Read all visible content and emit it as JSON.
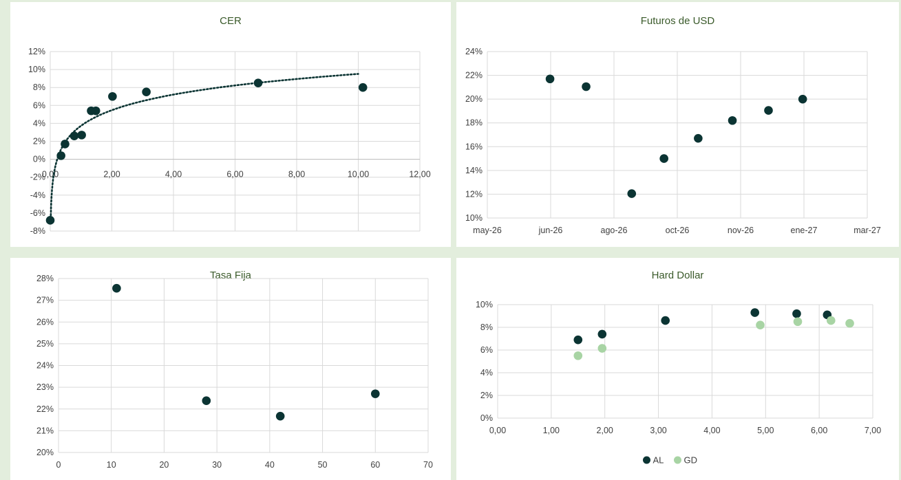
{
  "colors": {
    "dark": "#0b3433",
    "light": "#a8d4a4",
    "grid": "#d9d9d9",
    "title": "#3a5a2a"
  },
  "chart_data": [
    {
      "id": "cer",
      "type": "scatter",
      "title": "CER",
      "xlim": [
        0,
        12
      ],
      "ylim": [
        -8,
        12
      ],
      "xticks": [
        "0,00",
        "2,00",
        "4,00",
        "6,00",
        "8,00",
        "10,00",
        "12,00"
      ],
      "yticks": [
        "-8%",
        "-6%",
        "-4%",
        "-2%",
        "0%",
        "2%",
        "4%",
        "6%",
        "8%",
        "10%",
        "12%"
      ],
      "trendline": "log",
      "series": [
        {
          "color": "#0b3433",
          "points": [
            [
              0.0,
              -6.8
            ],
            [
              0.35,
              0.4
            ],
            [
              0.48,
              1.7
            ],
            [
              0.78,
              2.6
            ],
            [
              1.02,
              2.7
            ],
            [
              1.33,
              5.4
            ],
            [
              1.48,
              5.4
            ],
            [
              2.02,
              7.0
            ],
            [
              3.12,
              7.5
            ],
            [
              6.75,
              8.5
            ],
            [
              10.15,
              8.0
            ]
          ]
        }
      ]
    },
    {
      "id": "futuros",
      "type": "scatter",
      "title": "Futuros de USD",
      "xlim": [
        0,
        10
      ],
      "ylim": [
        10,
        24
      ],
      "xticks": [
        "may-26",
        "jun-26",
        "ago-26",
        "oct-26",
        "nov-26",
        "ene-27",
        "mar-27"
      ],
      "yticks": [
        "10%",
        "12%",
        "14%",
        "16%",
        "18%",
        "20%",
        "22%",
        "24%"
      ],
      "series": [
        {
          "color": "#0b3433",
          "points": [
            [
              1.65,
              21.7
            ],
            [
              2.6,
              21.05
            ],
            [
              3.8,
              12.05
            ],
            [
              4.65,
              15.0
            ],
            [
              5.55,
              16.7
            ],
            [
              6.45,
              18.2
            ],
            [
              7.4,
              19.05
            ],
            [
              8.3,
              20.0
            ]
          ]
        }
      ]
    },
    {
      "id": "tasafija",
      "type": "scatter",
      "title": "Tasa Fija",
      "xlim": [
        0,
        70
      ],
      "ylim": [
        20,
        28
      ],
      "xticks": [
        "0",
        "10",
        "20",
        "30",
        "40",
        "50",
        "60",
        "70"
      ],
      "yticks": [
        "20%",
        "21%",
        "22%",
        "23%",
        "24%",
        "25%",
        "26%",
        "27%",
        "28%"
      ],
      "series": [
        {
          "color": "#0b3433",
          "points": [
            [
              11,
              27.55
            ],
            [
              28,
              22.38
            ],
            [
              42,
              21.67
            ],
            [
              60,
              22.7
            ]
          ]
        }
      ]
    },
    {
      "id": "harddollar",
      "type": "scatter",
      "title": "Hard Dollar",
      "xlim": [
        0,
        7
      ],
      "ylim": [
        0,
        10
      ],
      "xticks": [
        "0,00",
        "1,00",
        "2,00",
        "3,00",
        "4,00",
        "5,00",
        "6,00",
        "7,00"
      ],
      "yticks": [
        "0%",
        "2%",
        "4%",
        "6%",
        "8%",
        "10%"
      ],
      "legend": "bottom",
      "series": [
        {
          "name": "AL",
          "color": "#0b3433",
          "points": [
            [
              1.5,
              6.9
            ],
            [
              1.95,
              7.4
            ],
            [
              3.13,
              8.6
            ],
            [
              4.8,
              9.3
            ],
            [
              5.58,
              9.2
            ],
            [
              6.15,
              9.1
            ]
          ]
        },
        {
          "name": "GD",
          "color": "#a8d4a4",
          "points": [
            [
              1.5,
              5.5
            ],
            [
              1.95,
              6.15
            ],
            [
              4.9,
              8.2
            ],
            [
              5.6,
              8.5
            ],
            [
              6.22,
              8.6
            ],
            [
              6.57,
              8.35
            ]
          ]
        }
      ]
    }
  ]
}
